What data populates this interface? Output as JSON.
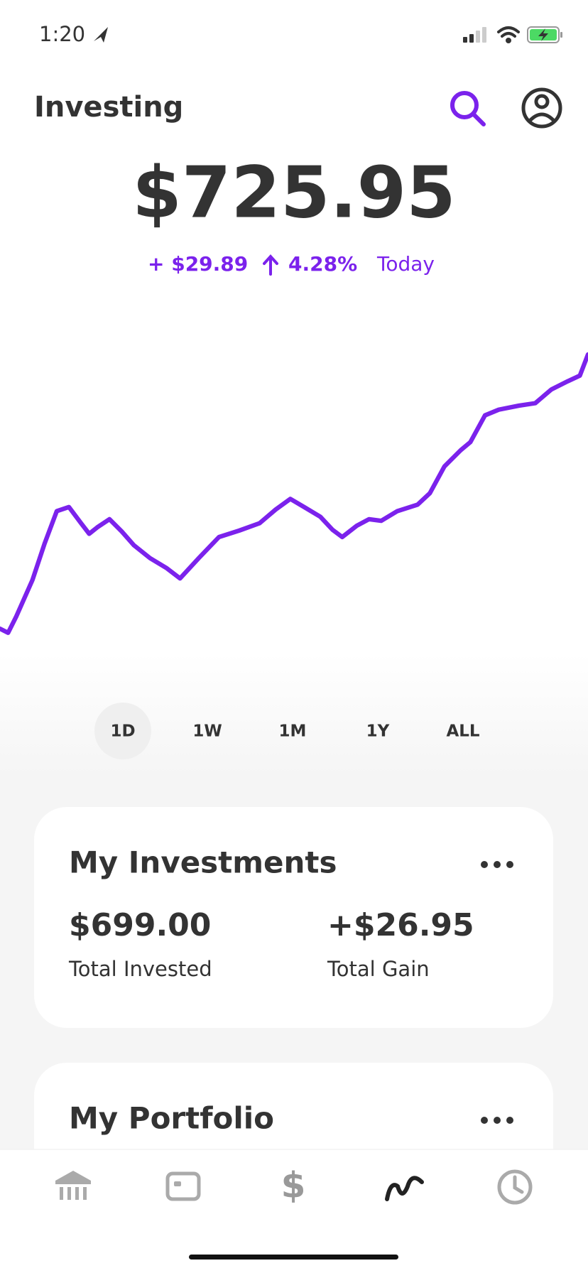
{
  "status_bar": {
    "time": "1:20"
  },
  "header": {
    "title": "Investing"
  },
  "balance": {
    "amount": "$725.95",
    "change": "+ $29.89",
    "percent": "4.28%",
    "period": "Today"
  },
  "ranges": [
    "1D",
    "1W",
    "1M",
    "1Y",
    "ALL"
  ],
  "investments": {
    "title": "My Investments",
    "stats": [
      {
        "value": "$699.00",
        "label": "Total Invested"
      },
      {
        "value": "+$26.95",
        "label": "Total Gain"
      }
    ]
  },
  "portfolio": {
    "title": "My Portfolio"
  }
}
